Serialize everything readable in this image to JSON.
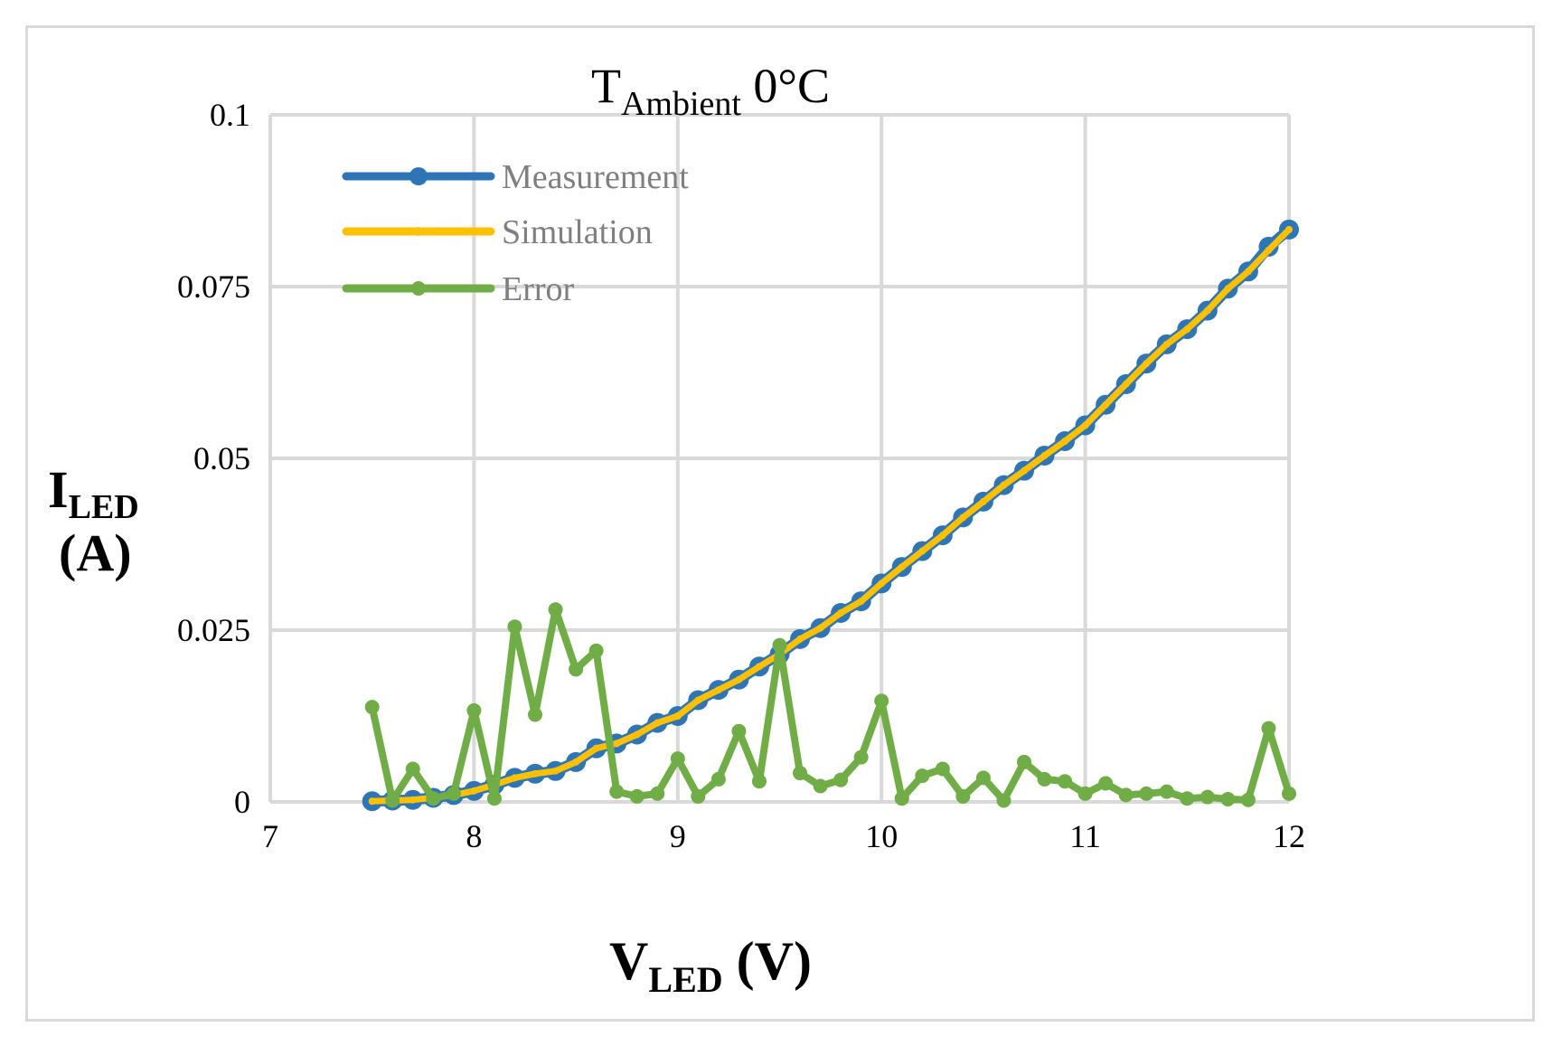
{
  "chart_data": {
    "type": "line",
    "title": {
      "main": "T",
      "sub": "Ambient",
      "rest": " 0°C"
    },
    "xlabel": {
      "main": "V",
      "sub": "LED",
      "rest": " (V)"
    },
    "ylabel": {
      "main": "I",
      "sub": "LED",
      "line2": "(A)"
    },
    "xlim": [
      7,
      12
    ],
    "ylim": [
      0,
      0.1
    ],
    "x_ticks": [
      7,
      8,
      9,
      10,
      11,
      12
    ],
    "x_tick_labels": [
      "7",
      "8",
      "9",
      "10",
      "11",
      "12"
    ],
    "y_ticks": [
      0,
      0.025,
      0.05,
      0.075,
      0.1
    ],
    "y_tick_labels": [
      "0",
      "0.025",
      "0.05",
      "0.075",
      "0.1"
    ],
    "grid": true,
    "legend_position": "top-left",
    "x": [
      7.5,
      7.6,
      7.7,
      7.8,
      7.9,
      8.0,
      8.1,
      8.2,
      8.3,
      8.4,
      8.5,
      8.6,
      8.7,
      8.8,
      8.9,
      9.0,
      9.1,
      9.2,
      9.3,
      9.4,
      9.5,
      9.6,
      9.7,
      9.8,
      9.9,
      10.0,
      10.1,
      10.2,
      10.3,
      10.4,
      10.5,
      10.6,
      10.7,
      10.8,
      10.9,
      11.0,
      11.1,
      11.2,
      11.3,
      11.4,
      11.5,
      11.6,
      11.7,
      11.8,
      11.9,
      12.0
    ],
    "series": [
      {
        "name": "Measurement",
        "color": "#2e75b6",
        "values": [
          0.0001,
          0.0002,
          0.0003,
          0.0006,
          0.001,
          0.0016,
          0.0025,
          0.0035,
          0.0041,
          0.0045,
          0.0058,
          0.0078,
          0.0085,
          0.0098,
          0.0115,
          0.0125,
          0.0148,
          0.0163,
          0.0178,
          0.0197,
          0.0215,
          0.0237,
          0.0253,
          0.0275,
          0.0292,
          0.0318,
          0.0342,
          0.0365,
          0.0388,
          0.0414,
          0.0437,
          0.0461,
          0.0482,
          0.0504,
          0.0525,
          0.0548,
          0.0578,
          0.0608,
          0.0638,
          0.0666,
          0.0688,
          0.0715,
          0.0747,
          0.0772,
          0.0808,
          0.0833
        ]
      },
      {
        "name": "Simulation",
        "color": "#ffc000",
        "values": [
          0.0001,
          0.0002,
          0.0003,
          0.0006,
          0.001,
          0.0016,
          0.0025,
          0.0035,
          0.0041,
          0.0045,
          0.0058,
          0.0078,
          0.0085,
          0.0098,
          0.0115,
          0.0125,
          0.0148,
          0.0163,
          0.0178,
          0.0197,
          0.0215,
          0.0237,
          0.0253,
          0.0275,
          0.0292,
          0.0318,
          0.0342,
          0.0365,
          0.0388,
          0.0414,
          0.0437,
          0.0461,
          0.0482,
          0.0504,
          0.0525,
          0.0548,
          0.0578,
          0.0608,
          0.0638,
          0.0666,
          0.0688,
          0.0715,
          0.0747,
          0.0772,
          0.0803,
          0.0833
        ]
      },
      {
        "name": "Error",
        "color": "#70ad47",
        "values": [
          0.0138,
          0.0002,
          0.0048,
          0.0005,
          0.0012,
          0.0133,
          0.0005,
          0.0255,
          0.0127,
          0.028,
          0.0193,
          0.022,
          0.0015,
          0.0008,
          0.0012,
          0.0063,
          0.0008,
          0.0033,
          0.0103,
          0.003,
          0.0228,
          0.0042,
          0.0023,
          0.0032,
          0.0065,
          0.0147,
          0.0005,
          0.0038,
          0.0048,
          0.0008,
          0.0035,
          0.0002,
          0.0058,
          0.0033,
          0.003,
          0.0012,
          0.0027,
          0.001,
          0.0012,
          0.0015,
          0.0005,
          0.0007,
          0.0004,
          0.0003,
          0.0107,
          0.0012
        ]
      }
    ]
  }
}
